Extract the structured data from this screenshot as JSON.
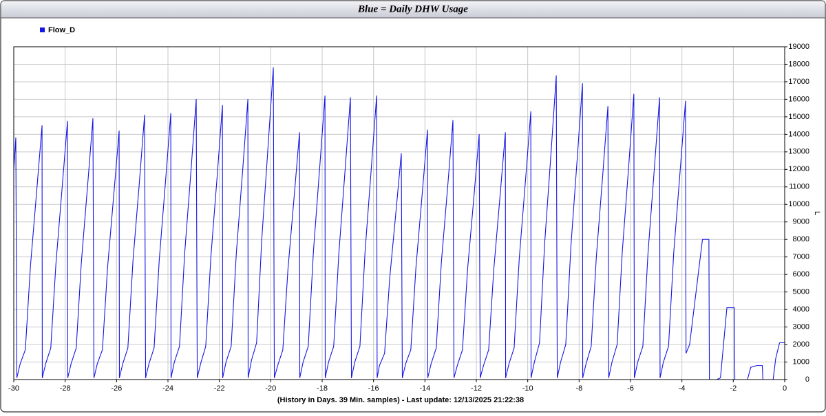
{
  "chart_data": {
    "type": "line",
    "title": "Blue = Daily DHW Usage",
    "x_label": "(History in Days. 39 Min. samples) - Last update: 12/13/2025 21:22:38",
    "y_label": "L",
    "xlim": [
      -30,
      0
    ],
    "ylim": [
      0,
      19000
    ],
    "xticks": [
      -30,
      -28,
      -26,
      -24,
      -22,
      -20,
      -18,
      -16,
      -14,
      -12,
      -10,
      -8,
      -6,
      -4,
      -2,
      0
    ],
    "yticks": [
      0,
      1000,
      2000,
      3000,
      4000,
      5000,
      6000,
      7000,
      8000,
      9000,
      10000,
      11000,
      12000,
      13000,
      14000,
      15000,
      16000,
      17000,
      18000,
      19000
    ],
    "grid": true,
    "legend": "top-left",
    "x": [
      -30,
      -29.92,
      -29.88,
      -29.75,
      -29.55,
      -29.35,
      -29.1,
      -28.9,
      -28.89,
      -28.76,
      -28.56,
      -28.36,
      -28.11,
      -27.91,
      -27.9,
      -27.77,
      -27.57,
      -27.37,
      -27.12,
      -26.92,
      -26.88,
      -26.75,
      -26.55,
      -26.35,
      -26.1,
      -25.9,
      -25.89,
      -25.76,
      -25.56,
      -25.36,
      -25.11,
      -24.91,
      -24.87,
      -24.74,
      -24.54,
      -24.34,
      -24.09,
      -23.89,
      -23.88,
      -23.75,
      -23.55,
      -23.35,
      -23.1,
      -22.9,
      -22.86,
      -22.73,
      -22.53,
      -22.33,
      -22.08,
      -21.88,
      -21.87,
      -21.74,
      -21.54,
      -21.34,
      -21.09,
      -20.89,
      -20.88,
      -20.75,
      -20.55,
      -20.35,
      -20.1,
      -19.9,
      -19.86,
      -19.73,
      -19.53,
      -19.33,
      -19.08,
      -18.88,
      -18.87,
      -18.74,
      -18.54,
      -18.34,
      -18.09,
      -17.89,
      -17.88,
      -17.75,
      -17.55,
      -17.35,
      -17.1,
      -16.9,
      -16.86,
      -16.73,
      -16.53,
      -16.33,
      -16.08,
      -15.88,
      -15.86,
      -15.77,
      -15.57,
      -15.37,
      -15.12,
      -14.92,
      -14.88,
      -14.75,
      -14.55,
      -14.35,
      -14.1,
      -13.9,
      -13.89,
      -13.76,
      -13.56,
      -13.36,
      -13.11,
      -12.91,
      -12.87,
      -12.74,
      -12.54,
      -12.34,
      -12.09,
      -11.89,
      -11.85,
      -11.72,
      -11.52,
      -11.32,
      -11.07,
      -10.87,
      -10.86,
      -10.73,
      -10.53,
      -10.33,
      -10.08,
      -9.88,
      -9.87,
      -9.74,
      -9.54,
      -9.34,
      -9.09,
      -8.89,
      -8.85,
      -8.72,
      -8.52,
      -8.32,
      -8.07,
      -7.87,
      -7.86,
      -7.73,
      -7.53,
      -7.33,
      -7.08,
      -6.88,
      -6.85,
      -6.72,
      -6.52,
      -6.32,
      -6.07,
      -5.87,
      -5.85,
      -5.72,
      -5.52,
      -5.32,
      -5.07,
      -4.87,
      -4.85,
      -4.72,
      -4.52,
      -4.32,
      -4.07,
      -3.86,
      -3.84,
      -3.7,
      -3.45,
      -3.2,
      -2.95,
      -2.93,
      -2.65,
      -2.5,
      -2.25,
      -1.96,
      -1.94,
      -1.45,
      -1.32,
      -1.09,
      -0.87,
      -0.85,
      -0.45,
      -0.35,
      -0.2,
      0
    ],
    "series": [
      {
        "name": "Flow_D",
        "color": "#1414e6",
        "values": [
          12000,
          13800,
          100,
          900,
          1700,
          6500,
          10900,
          14500,
          100,
          900,
          1800,
          6600,
          11100,
          14750,
          100,
          900,
          1800,
          6700,
          11200,
          14900,
          100,
          900,
          1700,
          6400,
          10700,
          14200,
          100,
          900,
          1800,
          6800,
          11300,
          15100,
          100,
          900,
          1800,
          6800,
          11400,
          15200,
          100,
          1000,
          1900,
          7200,
          12000,
          16000,
          100,
          900,
          1900,
          7000,
          11700,
          15650,
          100,
          1000,
          1900,
          7200,
          12000,
          16000,
          100,
          1100,
          2100,
          8000,
          13400,
          17800,
          100,
          800,
          1700,
          6300,
          10600,
          14100,
          100,
          1000,
          1900,
          7300,
          12200,
          16200,
          100,
          1000,
          1900,
          7200,
          12100,
          16100,
          100,
          1000,
          1900,
          7300,
          12200,
          16200,
          100,
          800,
          1500,
          5800,
          9700,
          12900,
          100,
          900,
          1700,
          6400,
          10700,
          14250,
          100,
          900,
          1800,
          6700,
          11100,
          14800,
          100,
          800,
          1700,
          6300,
          10500,
          14000,
          100,
          800,
          1700,
          6300,
          10600,
          14100,
          100,
          900,
          1800,
          6900,
          11500,
          15300,
          100,
          1000,
          2100,
          7800,
          13000,
          17350,
          100,
          1000,
          2000,
          7600,
          12700,
          16900,
          100,
          900,
          1900,
          7000,
          11700,
          15600,
          100,
          1000,
          2000,
          7300,
          12200,
          16300,
          100,
          1000,
          1900,
          7200,
          12100,
          16100,
          100,
          1000,
          1900,
          7200,
          11900,
          15900,
          1500,
          2000,
          5000,
          8000,
          8000,
          0,
          0,
          100,
          4100,
          4100,
          0,
          0,
          700,
          800,
          800,
          0,
          0,
          1200,
          2100,
          2100
        ]
      }
    ]
  }
}
